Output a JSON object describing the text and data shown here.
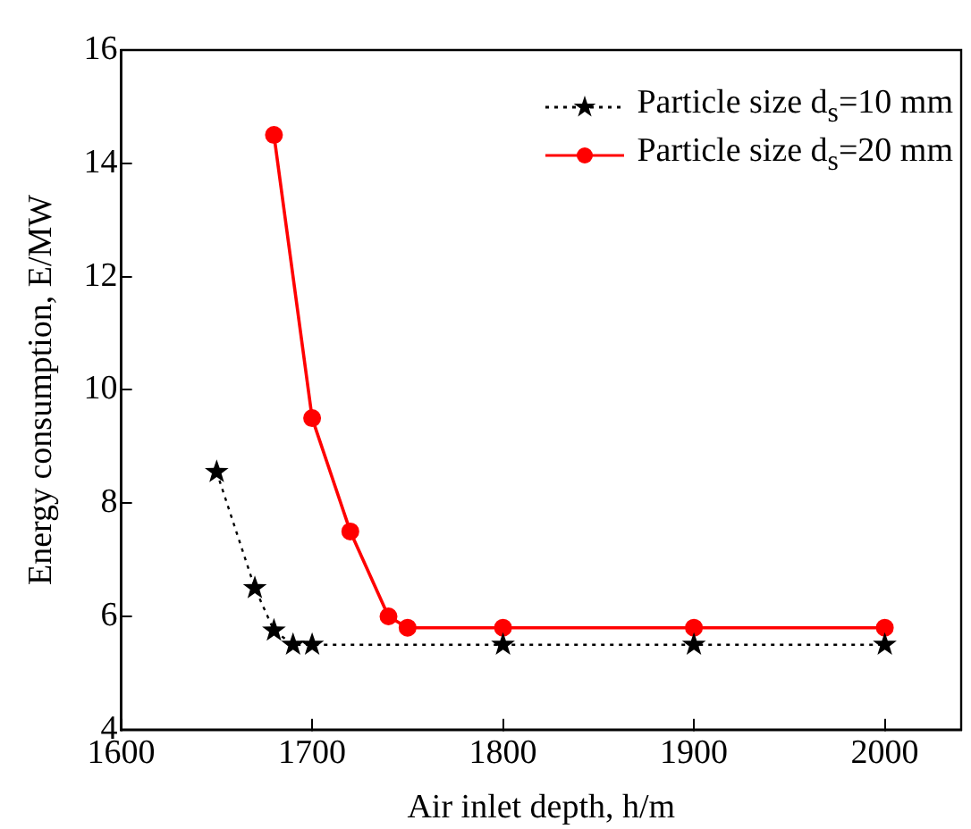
{
  "chart_data": {
    "type": "line",
    "xlabel": "Air inlet depth, h/m",
    "ylabel": "Energy consumption, E/MW",
    "xlim": [
      1600,
      2040
    ],
    "xticks": [
      1600,
      1700,
      1800,
      1900,
      2000
    ],
    "ylim": [
      4,
      16
    ],
    "yticks": [
      4,
      6,
      8,
      10,
      12,
      14,
      16
    ],
    "grid": false,
    "legend": "top right",
    "series": [
      {
        "name": "Particle size d$_{s}$=10 mm",
        "color": "#000000",
        "marker": "star",
        "line_style": "dotted",
        "x": [
          1650,
          1670,
          1680,
          1690,
          1700,
          1800,
          1900,
          2000
        ],
        "values": [
          8.55,
          6.5,
          5.75,
          5.5,
          5.5,
          5.5,
          5.5,
          5.5
        ]
      },
      {
        "name": "Particle size d$_{s}$=20 mm",
        "color": "#ff0000",
        "marker": "circle",
        "line_style": "solid",
        "x": [
          1680,
          1700,
          1720,
          1740,
          1750,
          1800,
          1900,
          2000
        ],
        "values": [
          14.5,
          9.5,
          7.5,
          6.0,
          5.8,
          5.8,
          5.8,
          5.8
        ]
      }
    ]
  }
}
